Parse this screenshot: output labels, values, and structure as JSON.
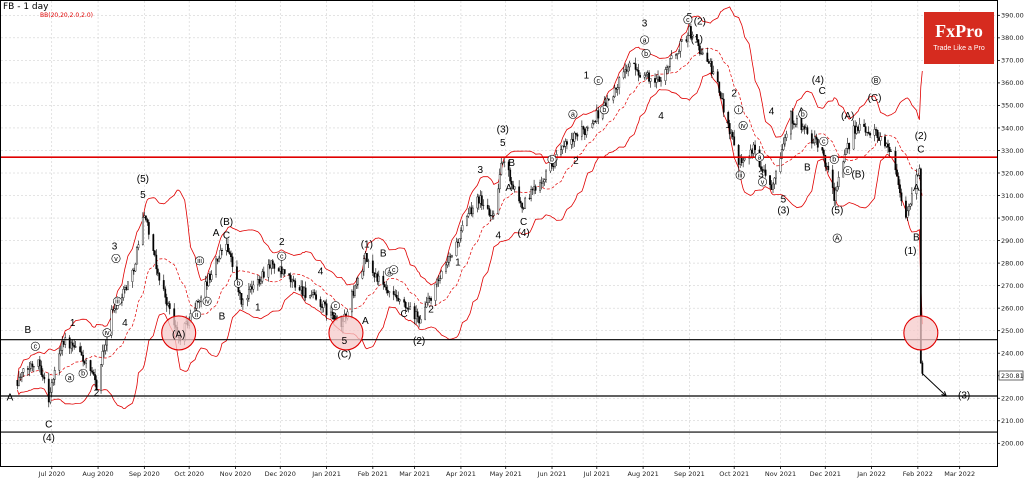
{
  "header": {
    "symbol": "FB - 1 day",
    "indicator": "BB(20,20,2.0,2.0)"
  },
  "logo": {
    "brand": "FxPro",
    "tagline": "Trade Like a Pro"
  },
  "price_axis": {
    "last_price": "230.81"
  },
  "colors": {
    "resistance": "#e00000",
    "support": "#000000",
    "bollinger": "#e00000",
    "highlight_fill": "#f6c9c9",
    "highlight_stroke": "#e00000",
    "logo_bg": "#d62b1f"
  },
  "chart_data": {
    "type": "candlestick",
    "title": "",
    "xlabel": "",
    "ylabel": "",
    "ylim": [
      188,
      394
    ],
    "y_ticks": [
      200,
      210,
      220,
      230,
      240,
      250,
      260,
      270,
      280,
      290,
      300,
      310,
      320,
      330,
      340,
      350,
      360,
      370,
      380,
      390
    ],
    "x_ticks": [
      "Jul 2020",
      "Aug 2020",
      "Sep 2020",
      "Oct 2020",
      "Nov 2020",
      "Dec 2020",
      "Jan 2021",
      "Feb 2021",
      "Mar 2021",
      "Apr 2021",
      "May 2021",
      "Jun 2021",
      "Jul 2021",
      "Aug 2021",
      "Sep 2021",
      "Oct 2021",
      "Nov 2021",
      "Dec 2021",
      "Jan 2022",
      "Feb 2022",
      "Mar 2022"
    ],
    "horizontal_levels": [
      {
        "name": "resistance",
        "value": 327
      },
      {
        "name": "support-1",
        "value": 246
      },
      {
        "name": "support-2",
        "value": 221
      },
      {
        "name": "support-3",
        "value": 205
      }
    ],
    "price_path": [
      {
        "date": "2020-06-08",
        "price": 228
      },
      {
        "date": "2020-06-22",
        "price": 238
      },
      {
        "date": "2020-06-29",
        "price": 220
      },
      {
        "date": "2020-07-08",
        "price": 246
      },
      {
        "date": "2020-07-20",
        "price": 240
      },
      {
        "date": "2020-07-31",
        "price": 226
      },
      {
        "date": "2020-08-10",
        "price": 258
      },
      {
        "date": "2020-08-24",
        "price": 275
      },
      {
        "date": "2020-09-01",
        "price": 303
      },
      {
        "date": "2020-09-09",
        "price": 278
      },
      {
        "date": "2020-09-24",
        "price": 246
      },
      {
        "date": "2020-10-09",
        "price": 266
      },
      {
        "date": "2020-10-26",
        "price": 290
      },
      {
        "date": "2020-11-05",
        "price": 262
      },
      {
        "date": "2020-11-24",
        "price": 280
      },
      {
        "date": "2020-12-08",
        "price": 272
      },
      {
        "date": "2020-12-28",
        "price": 262
      },
      {
        "date": "2021-01-11",
        "price": 252
      },
      {
        "date": "2021-01-27",
        "price": 282
      },
      {
        "date": "2021-02-10",
        "price": 267
      },
      {
        "date": "2021-03-04",
        "price": 255
      },
      {
        "date": "2021-03-22",
        "price": 278
      },
      {
        "date": "2021-04-12",
        "price": 310
      },
      {
        "date": "2021-04-22",
        "price": 300
      },
      {
        "date": "2021-04-29",
        "price": 326
      },
      {
        "date": "2021-05-12",
        "price": 305
      },
      {
        "date": "2021-06-07",
        "price": 330
      },
      {
        "date": "2021-06-24",
        "price": 340
      },
      {
        "date": "2021-07-12",
        "price": 355
      },
      {
        "date": "2021-07-22",
        "price": 368
      },
      {
        "date": "2021-08-10",
        "price": 360
      },
      {
        "date": "2021-09-01",
        "price": 383
      },
      {
        "date": "2021-09-17",
        "price": 365
      },
      {
        "date": "2021-10-04",
        "price": 326
      },
      {
        "date": "2021-10-14",
        "price": 330
      },
      {
        "date": "2021-10-26",
        "price": 315
      },
      {
        "date": "2021-11-08",
        "price": 345
      },
      {
        "date": "2021-11-29",
        "price": 330
      },
      {
        "date": "2021-12-07",
        "price": 310
      },
      {
        "date": "2021-12-20",
        "price": 340
      },
      {
        "date": "2022-01-04",
        "price": 338
      },
      {
        "date": "2022-01-14",
        "price": 330
      },
      {
        "date": "2022-01-24",
        "price": 300
      },
      {
        "date": "2022-02-02",
        "price": 322
      },
      {
        "date": "2022-02-03",
        "price": 237
      },
      {
        "date": "2022-02-04",
        "price": 231
      }
    ],
    "forecast_path": [
      {
        "date": "2022-02-04",
        "price": 231
      },
      {
        "date": "2022-02-20",
        "price": 221
      }
    ],
    "wave_labels": [
      {
        "date": "2020-06-03",
        "price": 219,
        "text": "A"
      },
      {
        "date": "2020-06-15",
        "price": 249,
        "text": "B"
      },
      {
        "date": "2020-06-29",
        "price": 207,
        "text": "C"
      },
      {
        "date": "2020-06-29",
        "price": 201,
        "text": "(4)"
      },
      {
        "date": "2020-07-15",
        "price": 252,
        "text": "1"
      },
      {
        "date": "2020-07-31",
        "price": 221,
        "text": "2"
      },
      {
        "date": "2020-08-12",
        "price": 286,
        "text": "3"
      },
      {
        "date": "2020-08-19",
        "price": 252,
        "text": "4"
      },
      {
        "date": "2020-08-31",
        "price": 316,
        "text": "(5)"
      },
      {
        "date": "2020-08-31",
        "price": 309,
        "text": "5"
      },
      {
        "date": "2020-09-24",
        "price": 247,
        "text": "(A)"
      },
      {
        "date": "2020-10-26",
        "price": 297,
        "text": "(B)"
      },
      {
        "date": "2020-10-26",
        "price": 291,
        "text": "C"
      },
      {
        "date": "2020-10-19",
        "price": 292,
        "text": "A"
      },
      {
        "date": "2020-10-23",
        "price": 255,
        "text": "B"
      },
      {
        "date": "2020-11-16",
        "price": 259,
        "text": "1"
      },
      {
        "date": "2020-12-02",
        "price": 288,
        "text": "2"
      },
      {
        "date": "2020-12-28",
        "price": 275,
        "text": "4"
      },
      {
        "date": "2021-01-06",
        "price": 255,
        "text": "3"
      },
      {
        "date": "2021-01-13",
        "price": 244,
        "text": "5"
      },
      {
        "date": "2021-01-13",
        "price": 238,
        "text": "(C)"
      },
      {
        "date": "2021-01-28",
        "price": 287,
        "text": "(1)"
      },
      {
        "date": "2021-01-27",
        "price": 253,
        "text": "A"
      },
      {
        "date": "2021-02-08",
        "price": 283,
        "text": "B"
      },
      {
        "date": "2021-02-22",
        "price": 256,
        "text": "C"
      },
      {
        "date": "2021-03-04",
        "price": 244,
        "text": "(2)"
      },
      {
        "date": "2021-03-12",
        "price": 258,
        "text": "2"
      },
      {
        "date": "2021-03-30",
        "price": 279,
        "text": "1"
      },
      {
        "date": "2021-04-14",
        "price": 320,
        "text": "3"
      },
      {
        "date": "2021-04-26",
        "price": 291,
        "text": "4"
      },
      {
        "date": "2021-04-29",
        "price": 338,
        "text": "(3)"
      },
      {
        "date": "2021-04-29",
        "price": 332,
        "text": "5"
      },
      {
        "date": "2021-05-05",
        "price": 323,
        "text": "B"
      },
      {
        "date": "2021-05-03",
        "price": 312,
        "text": "A"
      },
      {
        "date": "2021-05-13",
        "price": 297,
        "text": "C"
      },
      {
        "date": "2021-05-13",
        "price": 292,
        "text": "(4)"
      },
      {
        "date": "2021-06-24",
        "price": 362,
        "text": "1"
      },
      {
        "date": "2021-06-17",
        "price": 324,
        "text": "2"
      },
      {
        "date": "2021-08-02",
        "price": 385,
        "text": "3"
      },
      {
        "date": "2021-08-13",
        "price": 344,
        "text": "4"
      },
      {
        "date": "2021-09-01",
        "price": 388,
        "text": "5"
      },
      {
        "date": "2021-09-08",
        "price": 386,
        "text": "(2)"
      },
      {
        "date": "2021-09-06",
        "price": 378,
        "text": "(1)"
      },
      {
        "date": "2021-09-27",
        "price": 340,
        "text": "1"
      },
      {
        "date": "2021-10-01",
        "price": 354,
        "text": "2"
      },
      {
        "date": "2021-10-19",
        "price": 318,
        "text": "3"
      },
      {
        "date": "2021-10-26",
        "price": 346,
        "text": "4"
      },
      {
        "date": "2021-11-03",
        "price": 307,
        "text": "5"
      },
      {
        "date": "2021-11-03",
        "price": 302,
        "text": "(3)"
      },
      {
        "date": "2021-11-19",
        "price": 321,
        "text": "B"
      },
      {
        "date": "2021-11-15",
        "price": 346,
        "text": "A"
      },
      {
        "date": "2021-11-29",
        "price": 355,
        "text": "C"
      },
      {
        "date": "2021-11-26",
        "price": 360,
        "text": "(4)"
      },
      {
        "date": "2021-12-09",
        "price": 302,
        "text": "(5)"
      },
      {
        "date": "2021-12-16",
        "price": 344,
        "text": "(A)"
      },
      {
        "date": "2021-12-23",
        "price": 318,
        "text": "(B)"
      },
      {
        "date": "2022-01-03",
        "price": 352,
        "text": "(C)"
      },
      {
        "date": "2022-02-03",
        "price": 335,
        "text": "(2)"
      },
      {
        "date": "2022-02-03",
        "price": 329,
        "text": "C"
      },
      {
        "date": "2022-01-31",
        "price": 312,
        "text": "A"
      },
      {
        "date": "2022-01-31",
        "price": 290,
        "text": "B"
      },
      {
        "date": "2022-01-27",
        "price": 284,
        "text": "(1)"
      },
      {
        "date": "2022-03-04",
        "price": 220,
        "text": "(3)"
      }
    ],
    "small_wave_labels": [
      {
        "date": "2020-06-20",
        "price": 242,
        "text": "c"
      },
      {
        "date": "2020-07-13",
        "price": 228,
        "text": "a"
      },
      {
        "date": "2020-07-22",
        "price": 230,
        "text": "b"
      },
      {
        "date": "2020-08-07",
        "price": 248,
        "text": "iv"
      },
      {
        "date": "2020-08-14",
        "price": 262,
        "text": "iii"
      },
      {
        "date": "2020-08-13",
        "price": 281,
        "text": "v"
      },
      {
        "date": "2020-10-06",
        "price": 256,
        "text": "ii"
      },
      {
        "date": "2020-10-13",
        "price": 262,
        "text": "iv"
      },
      {
        "date": "2020-10-08",
        "price": 280,
        "text": "iii"
      },
      {
        "date": "2020-11-03",
        "price": 270,
        "text": "b"
      },
      {
        "date": "2020-12-02",
        "price": 282,
        "text": "c"
      },
      {
        "date": "2021-01-07",
        "price": 260,
        "text": "c"
      },
      {
        "date": "2021-02-12",
        "price": 275,
        "text": "a"
      },
      {
        "date": "2021-02-15",
        "price": 276,
        "text": "c"
      },
      {
        "date": "2021-06-01",
        "price": 325,
        "text": "b"
      },
      {
        "date": "2021-06-15",
        "price": 345,
        "text": "a"
      },
      {
        "date": "2021-07-06",
        "price": 347,
        "text": "b"
      },
      {
        "date": "2021-07-02",
        "price": 360,
        "text": "c"
      },
      {
        "date": "2021-08-02",
        "price": 378,
        "text": "a"
      },
      {
        "date": "2021-08-03",
        "price": 372,
        "text": "b"
      },
      {
        "date": "2021-08-31",
        "price": 387,
        "text": "c"
      },
      {
        "date": "2021-10-04",
        "price": 347,
        "text": "i"
      },
      {
        "date": "2021-10-07",
        "price": 340,
        "text": "iv"
      },
      {
        "date": "2021-10-18",
        "price": 326,
        "text": "a"
      },
      {
        "date": "2021-10-20",
        "price": 315,
        "text": "v"
      },
      {
        "date": "2021-10-05",
        "price": 318,
        "text": "iii"
      },
      {
        "date": "2021-12-07",
        "price": 325,
        "text": "b"
      },
      {
        "date": "2021-11-16",
        "price": 345,
        "text": "b"
      },
      {
        "date": "2021-11-30",
        "price": 333,
        "text": "c"
      },
      {
        "date": "2021-12-09",
        "price": 290,
        "text": "A"
      },
      {
        "date": "2021-12-16",
        "price": 320,
        "text": "c"
      },
      {
        "date": "2022-01-04",
        "price": 360,
        "text": "B"
      }
    ],
    "highlight_circles": [
      {
        "date": "2020-09-24",
        "price": 249
      },
      {
        "date": "2021-01-14",
        "price": 249
      },
      {
        "date": "2022-02-03",
        "price": 249
      }
    ]
  }
}
